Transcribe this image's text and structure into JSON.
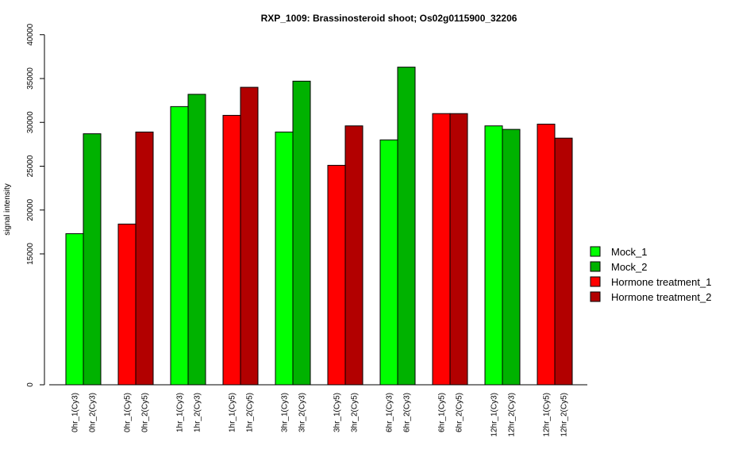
{
  "chart_data": {
    "type": "bar",
    "title": "RXP_1009: Brassinosteroid shoot; Os02g0115900_32206",
    "xlabel": "",
    "ylabel": "signal intensity",
    "y_scale": "linear (axis break between 0 and ~12000)",
    "y_ticks": [
      "0",
      "15000",
      "20000",
      "25000",
      "30000",
      "35000",
      "40000"
    ],
    "bars": [
      {
        "label": "0hr_1(Cy3)",
        "value": 17300,
        "series": "Mock_1"
      },
      {
        "label": "0hr_2(Cy3)",
        "value": 28700,
        "series": "Mock_2"
      },
      {
        "label": "0hr_1(Cy5)",
        "value": 18400,
        "series": "Hormone treatment_1"
      },
      {
        "label": "0hr_2(Cy5)",
        "value": 28900,
        "series": "Hormone treatment_2"
      },
      {
        "label": "1hr_1(Cy3)",
        "value": 31800,
        "series": "Mock_1"
      },
      {
        "label": "1hr_2(Cy3)",
        "value": 33200,
        "series": "Mock_2"
      },
      {
        "label": "1hr_1(Cy5)",
        "value": 30800,
        "series": "Hormone treatment_1"
      },
      {
        "label": "1hr_2(Cy5)",
        "value": 34000,
        "series": "Hormone treatment_2"
      },
      {
        "label": "3hr_1(Cy3)",
        "value": 28900,
        "series": "Mock_1"
      },
      {
        "label": "3hr_2(Cy3)",
        "value": 34700,
        "series": "Mock_2"
      },
      {
        "label": "3hr_1(Cy5)",
        "value": 25100,
        "series": "Hormone treatment_1"
      },
      {
        "label": "3hr_2(Cy5)",
        "value": 29600,
        "series": "Hormone treatment_2"
      },
      {
        "label": "6hr_1(Cy3)",
        "value": 28000,
        "series": "Mock_1"
      },
      {
        "label": "6hr_2(Cy3)",
        "value": 36300,
        "series": "Mock_2"
      },
      {
        "label": "6hr_1(Cy5)",
        "value": 31000,
        "series": "Hormone treatment_1"
      },
      {
        "label": "6hr_2(Cy5)",
        "value": 31000,
        "series": "Hormone treatment_2"
      },
      {
        "label": "12hr_1(Cy3)",
        "value": 29600,
        "series": "Mock_1"
      },
      {
        "label": "12hr_2(Cy3)",
        "value": 29200,
        "series": "Mock_2"
      },
      {
        "label": "12hr_1(Cy5)",
        "value": 29800,
        "series": "Hormone treatment_1"
      },
      {
        "label": "12hr_2(Cy5)",
        "value": 28200,
        "series": "Hormone treatment_2"
      }
    ],
    "legend": {
      "placement": "right",
      "entries": [
        {
          "name": "Mock_1",
          "color": "#00ff00"
        },
        {
          "name": "Mock_2",
          "color": "#00b200"
        },
        {
          "name": "Hormone treatment_1",
          "color": "#ff0000"
        },
        {
          "name": "Hormone treatment_2",
          "color": "#b20000"
        }
      ]
    },
    "grid": false
  }
}
